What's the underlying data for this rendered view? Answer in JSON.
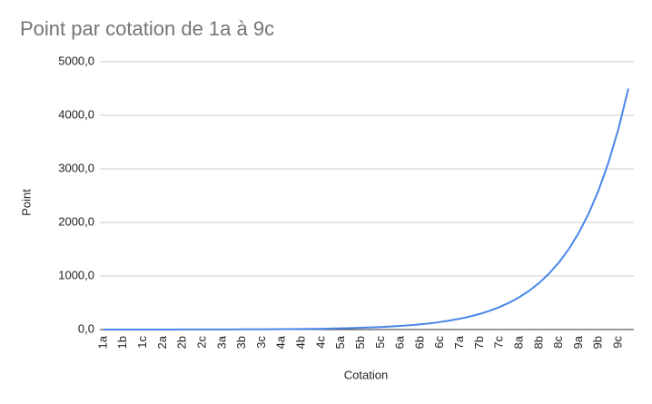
{
  "chart_data": {
    "type": "line",
    "title": "Point par cotation de 1a à 9c",
    "x_label": "Cotation",
    "y_label": "Point",
    "categories": [
      "1a",
      null,
      "1b",
      null,
      "1c",
      null,
      "2a",
      null,
      "2b",
      null,
      "2c",
      null,
      "3a",
      null,
      "3b",
      null,
      "3c",
      null,
      "4a",
      null,
      "4b",
      null,
      "4c",
      null,
      "5a",
      null,
      "5b",
      null,
      "5c",
      null,
      "6a",
      null,
      "6b",
      null,
      "6c",
      null,
      "7a",
      null,
      "7b",
      null,
      "7c",
      null,
      "8a",
      null,
      "8b",
      null,
      "8c",
      null,
      "9a",
      null,
      "9b",
      null,
      "9c",
      null
    ],
    "series": [
      {
        "name": "Point",
        "color": "#4a86e8",
        "values": [
          0.3,
          0.3,
          0.4,
          0.5,
          0.6,
          0.7,
          0.9,
          1.0,
          1.2,
          1.5,
          1.8,
          2.1,
          2.6,
          3.1,
          3.7,
          4.4,
          5.3,
          6.4,
          7.6,
          9.1,
          11.0,
          13.2,
          15.8,
          19.0,
          22.7,
          27.3,
          32.8,
          39.3,
          47.2,
          56.6,
          67.9,
          81.5,
          97.8,
          117.4,
          140.9,
          169.0,
          202.8,
          243.4,
          292.1,
          350.5,
          420.6,
          504.7,
          605.6,
          726.8,
          872.1,
          1046.6,
          1255.9,
          1507.0,
          1808.4,
          2170.1,
          2604.2,
          3125,
          3750,
          4500
        ]
      }
    ],
    "ylim": [
      0,
      5000
    ],
    "yticks": [
      {
        "value": 0,
        "label": "0,0"
      },
      {
        "value": 1000,
        "label": "1000,0"
      },
      {
        "value": 2000,
        "label": "2000,0"
      },
      {
        "value": 3000,
        "label": "3000,0"
      },
      {
        "value": 4000,
        "label": "4000,0"
      },
      {
        "value": 5000,
        "label": "5000,0"
      }
    ],
    "grid": true
  }
}
